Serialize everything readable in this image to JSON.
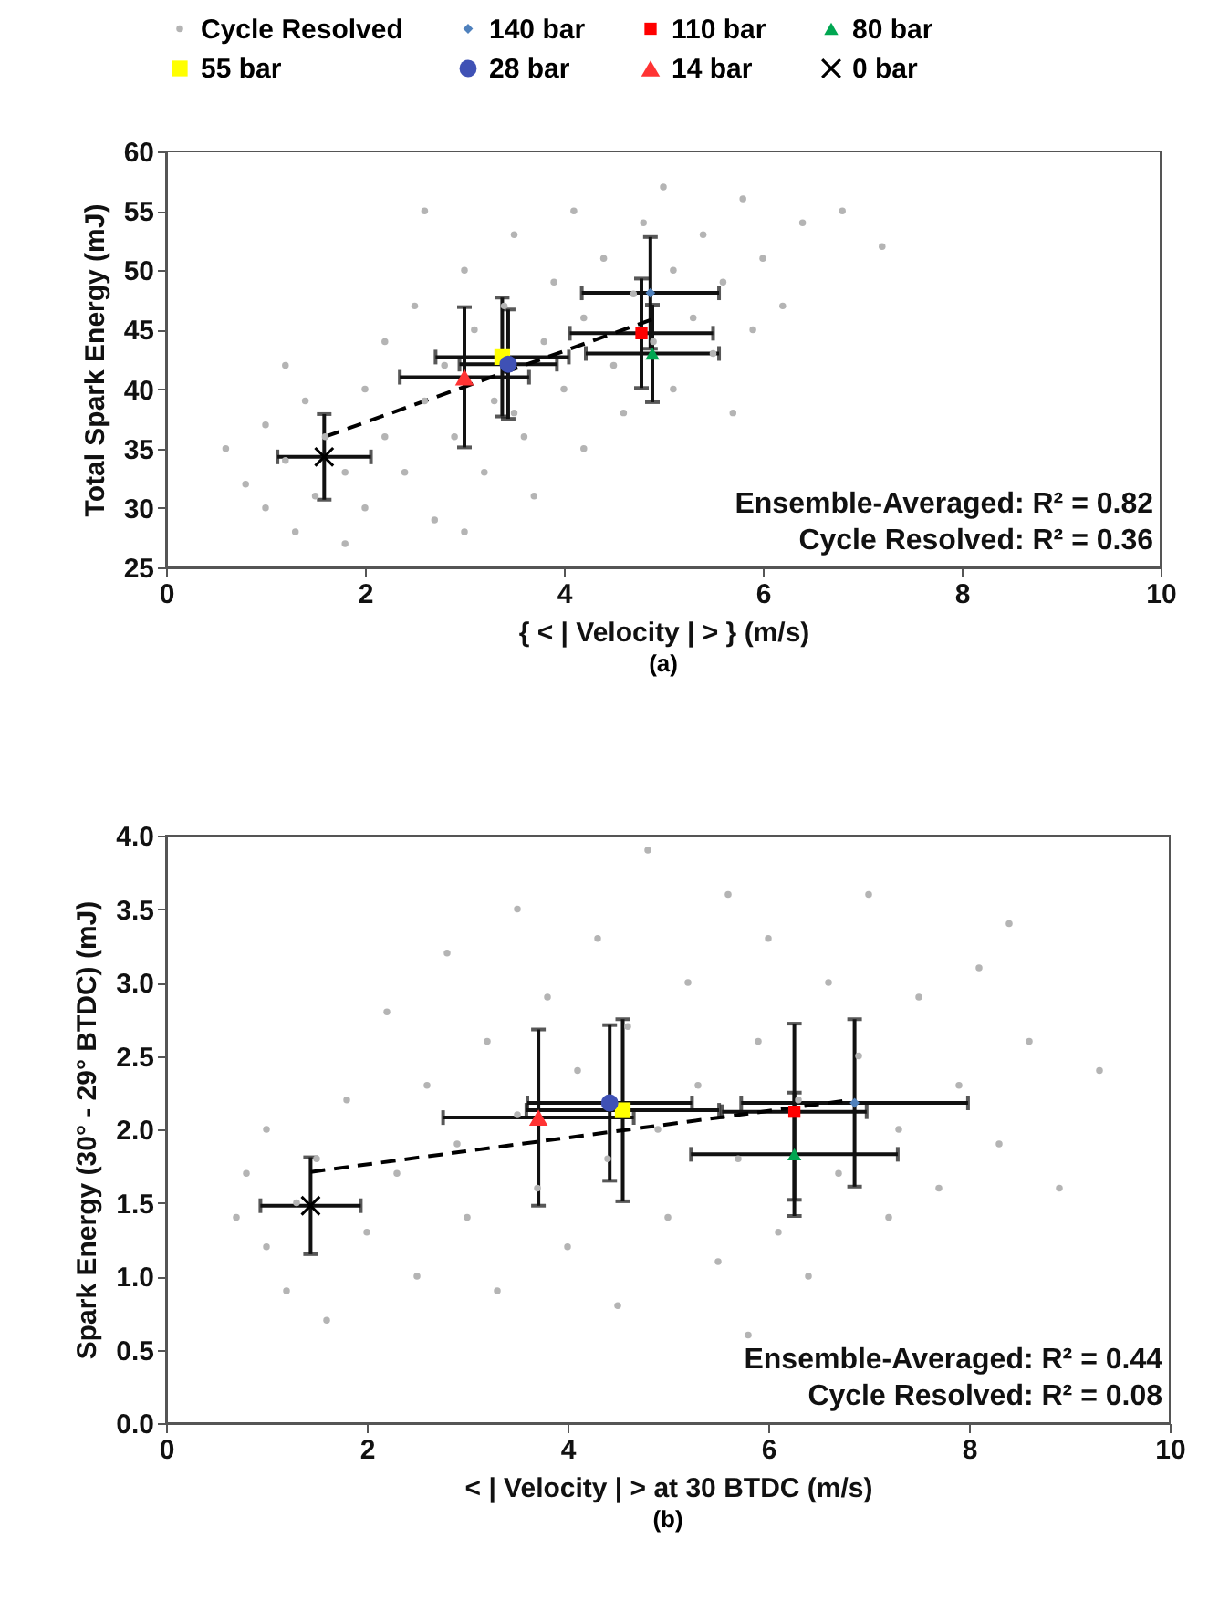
{
  "chart_data": [
    {
      "type": "scatter",
      "title": "(a)",
      "xlabel": "{ < | Velocity | > } (m/s)",
      "ylabel": "Total Spark Energy (mJ)",
      "xlim": [
        0,
        10
      ],
      "xticks": [
        0,
        2,
        4,
        6,
        8,
        10
      ],
      "ylim": [
        25,
        60
      ],
      "yticks": [
        25,
        30,
        35,
        40,
        45,
        50,
        55,
        60
      ],
      "legend": "top",
      "grid": false,
      "annotations": [
        "Ensemble-Averaged: R² = 0.82",
        "Cycle Resolved: R² = 0.36"
      ],
      "series": [
        {
          "name": "Cycle Resolved",
          "color": "#b4b4b4",
          "marker": "circle",
          "x": [
            0.6,
            0.8,
            1.0,
            1.0,
            1.2,
            1.3,
            1.4,
            1.5,
            1.6,
            1.8,
            1.8,
            2.0,
            2.0,
            2.2,
            2.2,
            2.4,
            2.5,
            2.6,
            2.7,
            2.8,
            2.9,
            3.0,
            3.1,
            3.2,
            3.3,
            3.4,
            3.5,
            3.5,
            3.6,
            3.7,
            3.8,
            3.9,
            4.0,
            4.1,
            4.2,
            4.2,
            4.4,
            4.5,
            4.6,
            4.7,
            4.8,
            4.9,
            5.0,
            5.1,
            5.1,
            5.3,
            5.4,
            5.5,
            5.6,
            5.8,
            5.9,
            6.0,
            6.2,
            6.4,
            6.8,
            2.6,
            1.2,
            3.0,
            7.2,
            5.7
          ],
          "values": [
            35,
            32,
            37,
            30,
            34,
            28,
            39,
            31,
            36,
            27,
            33,
            40,
            30,
            36,
            44,
            33,
            47,
            39,
            29,
            42,
            36,
            50,
            45,
            33,
            39,
            47,
            53,
            38,
            36,
            31,
            44,
            49,
            40,
            55,
            46,
            35,
            51,
            42,
            38,
            48,
            54,
            44,
            57,
            50,
            40,
            46,
            53,
            43,
            49,
            56,
            45,
            51,
            47,
            54,
            55,
            55,
            42,
            28,
            52,
            38
          ]
        },
        {
          "name": "140 bar",
          "color": "#4f81bd",
          "marker": "diamond",
          "x": [
            4.87
          ],
          "values": [
            48.1
          ],
          "errors": [
            4.7
          ],
          "xerrors": [
            0.69
          ]
        },
        {
          "name": "110 bar",
          "color": "#ff0000",
          "marker": "square",
          "x": [
            4.78
          ],
          "values": [
            44.7
          ],
          "errors": [
            4.6
          ],
          "xerrors": [
            0.72
          ]
        },
        {
          "name": "80 bar",
          "color": "#00a651",
          "marker": "triangle",
          "x": [
            4.89
          ],
          "values": [
            43.0
          ],
          "errors": [
            4.1
          ],
          "xerrors": [
            0.67
          ]
        },
        {
          "name": "55 bar",
          "color": "#ffff00",
          "marker": "square",
          "x": [
            3.38
          ],
          "values": [
            42.7
          ],
          "errors": [
            5.0
          ],
          "xerrors": [
            0.67
          ]
        },
        {
          "name": "28 bar",
          "color": "#3f51b5",
          "marker": "circle",
          "x": [
            3.44
          ],
          "values": [
            42.1
          ],
          "errors": [
            4.6
          ],
          "xerrors": [
            0.49
          ]
        },
        {
          "name": "14 bar",
          "color": "#ff3333",
          "marker": "triangle",
          "x": [
            3.0
          ],
          "values": [
            41.0
          ],
          "errors": [
            5.9
          ],
          "xerrors": [
            0.65
          ]
        },
        {
          "name": "0 bar",
          "color": "#000000",
          "marker": "cross",
          "x": [
            1.59
          ],
          "values": [
            34.3
          ],
          "errors": [
            3.6
          ],
          "xerrors": [
            0.47
          ]
        },
        {
          "type": "line",
          "color": "#000000",
          "line_style": "dashed",
          "x": [
            1.6,
            4.9
          ],
          "values": [
            36.0,
            45.9
          ]
        }
      ]
    },
    {
      "type": "scatter",
      "title": "(b)",
      "xlabel": "< | Velocity | > at 30 BTDC (m/s)",
      "ylabel": "Spark Energy (30° - 29° BTDC) (mJ)",
      "xlim": [
        0,
        10
      ],
      "xticks": [
        0,
        2,
        4,
        6,
        8,
        10
      ],
      "ylim": [
        0,
        4
      ],
      "yticks": [
        {
          "value": 0,
          "label": "0.0"
        },
        {
          "value": 0.5,
          "label": "0.5"
        },
        {
          "value": 1,
          "label": "1.0"
        },
        {
          "value": 1.5,
          "label": "1.5"
        },
        {
          "value": 2,
          "label": "2.0"
        },
        {
          "value": 2.5,
          "label": "2.5"
        },
        {
          "value": 3,
          "label": "3.0"
        },
        {
          "value": 3.5,
          "label": "3.5"
        },
        {
          "value": 4,
          "label": "4.0"
        }
      ],
      "legend": "top",
      "grid": false,
      "annotations": [
        "Ensemble-Averaged: R² = 0.44",
        "Cycle Resolved: R² = 0.08"
      ],
      "series": [
        {
          "name": "Cycle Resolved",
          "color": "#b4b4b4",
          "marker": "circle",
          "x": [
            0.7,
            0.8,
            1.0,
            1.0,
            1.2,
            1.3,
            1.5,
            1.6,
            1.8,
            2.0,
            2.2,
            2.3,
            2.5,
            2.6,
            2.8,
            2.9,
            3.0,
            3.2,
            3.3,
            3.5,
            3.5,
            3.7,
            3.8,
            4.0,
            4.1,
            4.3,
            4.4,
            4.5,
            4.6,
            4.8,
            4.9,
            5.0,
            5.2,
            5.3,
            5.5,
            5.6,
            5.7,
            5.9,
            6.0,
            6.1,
            6.3,
            6.4,
            6.6,
            6.7,
            6.9,
            7.0,
            7.2,
            7.3,
            7.5,
            7.7,
            7.9,
            8.1,
            8.3,
            8.6,
            8.9,
            9.3,
            8.4,
            5.8
          ],
          "values": [
            1.4,
            1.7,
            1.2,
            2.0,
            0.9,
            1.5,
            1.8,
            0.7,
            2.2,
            1.3,
            2.8,
            1.7,
            1.0,
            2.3,
            3.2,
            1.9,
            1.4,
            2.6,
            0.9,
            3.5,
            2.1,
            1.6,
            2.9,
            1.2,
            2.4,
            3.3,
            1.8,
            0.8,
            2.7,
            3.9,
            2.0,
            1.4,
            3.0,
            2.3,
            1.1,
            3.6,
            1.8,
            2.6,
            3.3,
            1.3,
            2.2,
            1.0,
            3.0,
            1.7,
            2.5,
            3.6,
            1.4,
            2.0,
            2.9,
            1.6,
            2.3,
            3.1,
            1.9,
            2.6,
            1.6,
            2.4,
            3.4,
            0.6
          ]
        },
        {
          "name": "140 bar",
          "color": "#4f81bd",
          "marker": "diamond",
          "x": [
            6.86
          ],
          "values": [
            2.18
          ],
          "errors": [
            0.57
          ],
          "xerrors": [
            1.13
          ]
        },
        {
          "name": "110 bar",
          "color": "#ff0000",
          "marker": "square",
          "x": [
            6.26
          ],
          "values": [
            2.12
          ],
          "errors": [
            0.6
          ],
          "xerrors": [
            0.72
          ]
        },
        {
          "name": "80 bar",
          "color": "#00a651",
          "marker": "triangle",
          "x": [
            6.26
          ],
          "values": [
            1.83
          ],
          "errors": [
            0.42
          ],
          "xerrors": [
            1.03
          ]
        },
        {
          "name": "55 bar",
          "color": "#ffff00",
          "marker": "square",
          "x": [
            4.55
          ],
          "values": [
            2.13
          ],
          "errors": [
            0.62
          ],
          "xerrors": [
            0.96
          ]
        },
        {
          "name": "28 bar",
          "color": "#3f51b5",
          "marker": "circle",
          "x": [
            4.42
          ],
          "values": [
            2.18
          ],
          "errors": [
            0.53
          ],
          "xerrors": [
            0.82
          ]
        },
        {
          "name": "14 bar",
          "color": "#ff3333",
          "marker": "triangle",
          "x": [
            3.71
          ],
          "values": [
            2.08
          ],
          "errors": [
            0.6
          ],
          "xerrors": [
            0.95
          ]
        },
        {
          "name": "0 bar",
          "color": "#000000",
          "marker": "cross",
          "x": [
            1.44
          ],
          "values": [
            1.48
          ],
          "errors": [
            0.33
          ],
          "xerrors": [
            0.5
          ]
        },
        {
          "type": "line",
          "color": "#000000",
          "line_style": "dashed",
          "x": [
            1.44,
            6.82
          ],
          "values": [
            1.71,
            2.2
          ]
        }
      ]
    }
  ]
}
